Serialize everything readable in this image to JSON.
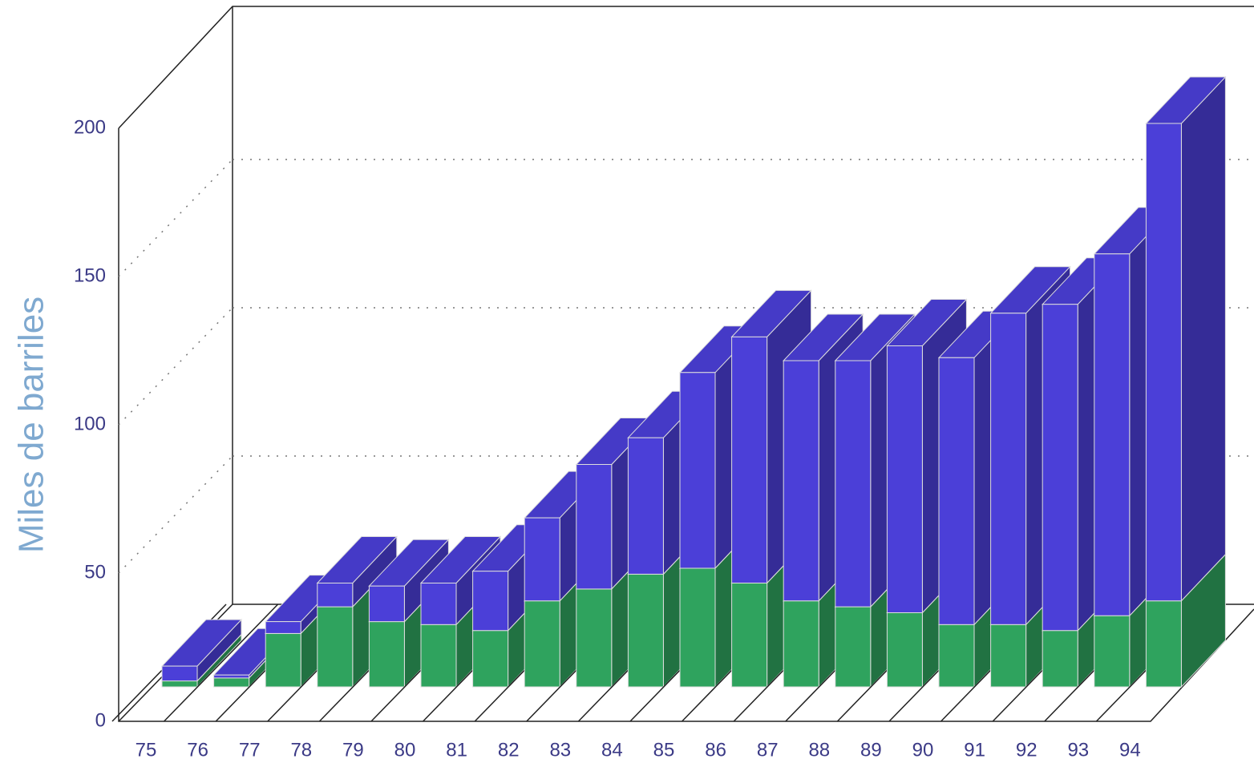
{
  "chart_data": {
    "type": "bar3d_stacked",
    "y_label": "Miles de barriles",
    "categories": [
      "75",
      "76",
      "77",
      "78",
      "79",
      "80",
      "81",
      "82",
      "83",
      "84",
      "85",
      "86",
      "87",
      "88",
      "89",
      "90",
      "91",
      "92",
      "93",
      "94"
    ],
    "series": [
      {
        "color": "#2fa35e",
        "values": [
          2,
          3,
          18,
          27,
          22,
          21,
          19,
          29,
          33,
          38,
          40,
          35,
          29,
          27,
          25,
          21,
          21,
          19,
          24,
          29
        ]
      },
      {
        "color": "#4b3fd8",
        "values": [
          5,
          1,
          4,
          8,
          12,
          14,
          20,
          28,
          42,
          46,
          66,
          83,
          81,
          83,
          90,
          90,
          105,
          110,
          122,
          161
        ]
      }
    ],
    "ylim": [
      0,
      200
    ],
    "yticks": [
      0,
      50,
      100,
      150,
      200
    ],
    "grid": true
  }
}
